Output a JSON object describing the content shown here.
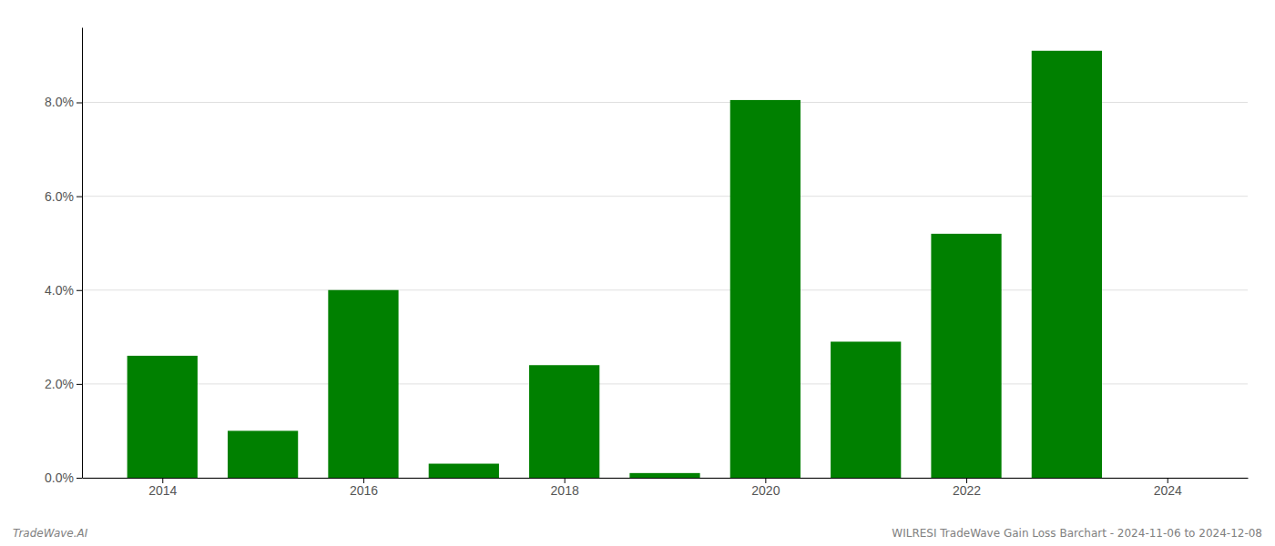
{
  "chart_data": {
    "type": "bar",
    "x": [
      2014,
      2015,
      2016,
      2017,
      2018,
      2019,
      2020,
      2021,
      2022,
      2023
    ],
    "values": [
      0.026,
      0.01,
      0.04,
      0.003,
      0.024,
      0.001,
      0.0805,
      0.029,
      0.052,
      0.091
    ],
    "color": "#008000",
    "xlim": [
      2013.2,
      2024.8
    ],
    "xticks": [
      2014,
      2016,
      2018,
      2020,
      2022,
      2024
    ],
    "ylim": [
      0.0,
      0.096
    ],
    "yticks": [
      {
        "value": 0.0,
        "label": "0.0%"
      },
      {
        "value": 0.02,
        "label": "2.0%"
      },
      {
        "value": 0.04,
        "label": "4.0%"
      },
      {
        "value": 0.06,
        "label": "6.0%"
      },
      {
        "value": 0.08,
        "label": "8.0%"
      }
    ],
    "grid": true,
    "annotations": [
      "TradeWave.AI",
      "WILRESI TradeWave Gain Loss Barchart - 2024-11-06 to 2024-12-08"
    ]
  }
}
